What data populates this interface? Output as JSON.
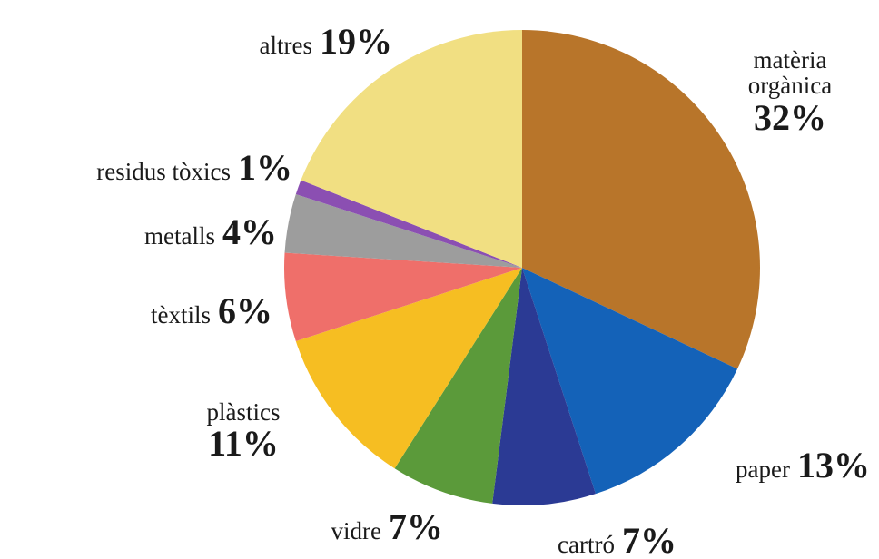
{
  "chart_data": {
    "type": "pie",
    "categories": [
      "matèria orgànica",
      "paper",
      "cartró",
      "vidre",
      "plàstics",
      "tèxtils",
      "metalls",
      "residus tòxics",
      "altres"
    ],
    "values": [
      32,
      13,
      7,
      7,
      11,
      6,
      4,
      1,
      19
    ],
    "value_labels": [
      "32%",
      "13%",
      "7%",
      "7%",
      "11%",
      "6%",
      "4%",
      "1%",
      "19%"
    ],
    "colors": [
      "#b8752a",
      "#1462b8",
      "#2b3a94",
      "#5b9a3a",
      "#f6be22",
      "#ef6f6a",
      "#9d9d9d",
      "#8b4fb2",
      "#f1df82"
    ]
  }
}
